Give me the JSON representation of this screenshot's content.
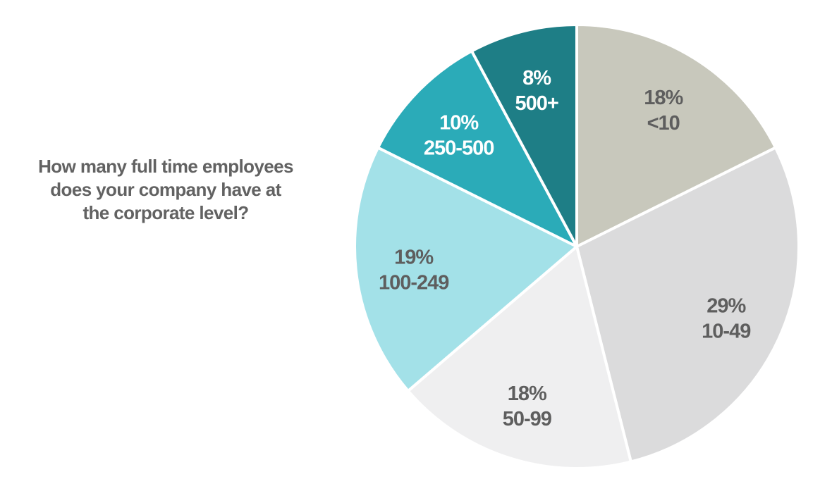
{
  "chart_data": {
    "type": "pie",
    "title": "How many full time employees does your company have at the corporate level?",
    "title_lines": [
      "How many full time employees",
      "does your company have at",
      "the corporate level?"
    ],
    "start": "12 o'clock",
    "direction": "clockwise",
    "slices": [
      {
        "label": "<10",
        "value": 18,
        "value_label": "18%",
        "color": "#c8c8bc",
        "text_color": "#5e5e5e"
      },
      {
        "label": "10-49",
        "value": 29,
        "value_label": "29%",
        "color": "#dbdbdc",
        "text_color": "#5e5e5e"
      },
      {
        "label": "50-99",
        "value": 18,
        "value_label": "18%",
        "color": "#efeff0",
        "text_color": "#5e5e5e"
      },
      {
        "label": "100-249",
        "value": 19,
        "value_label": "19%",
        "color": "#a3e1e8",
        "text_color": "#5e5e5e"
      },
      {
        "label": "250-500",
        "value": 10,
        "value_label": "10%",
        "color": "#2babb8",
        "text_color": "#ffffff"
      },
      {
        "label": "500+",
        "value": 8,
        "value_label": "8%",
        "color": "#1e7e86",
        "text_color": "#ffffff"
      }
    ]
  }
}
